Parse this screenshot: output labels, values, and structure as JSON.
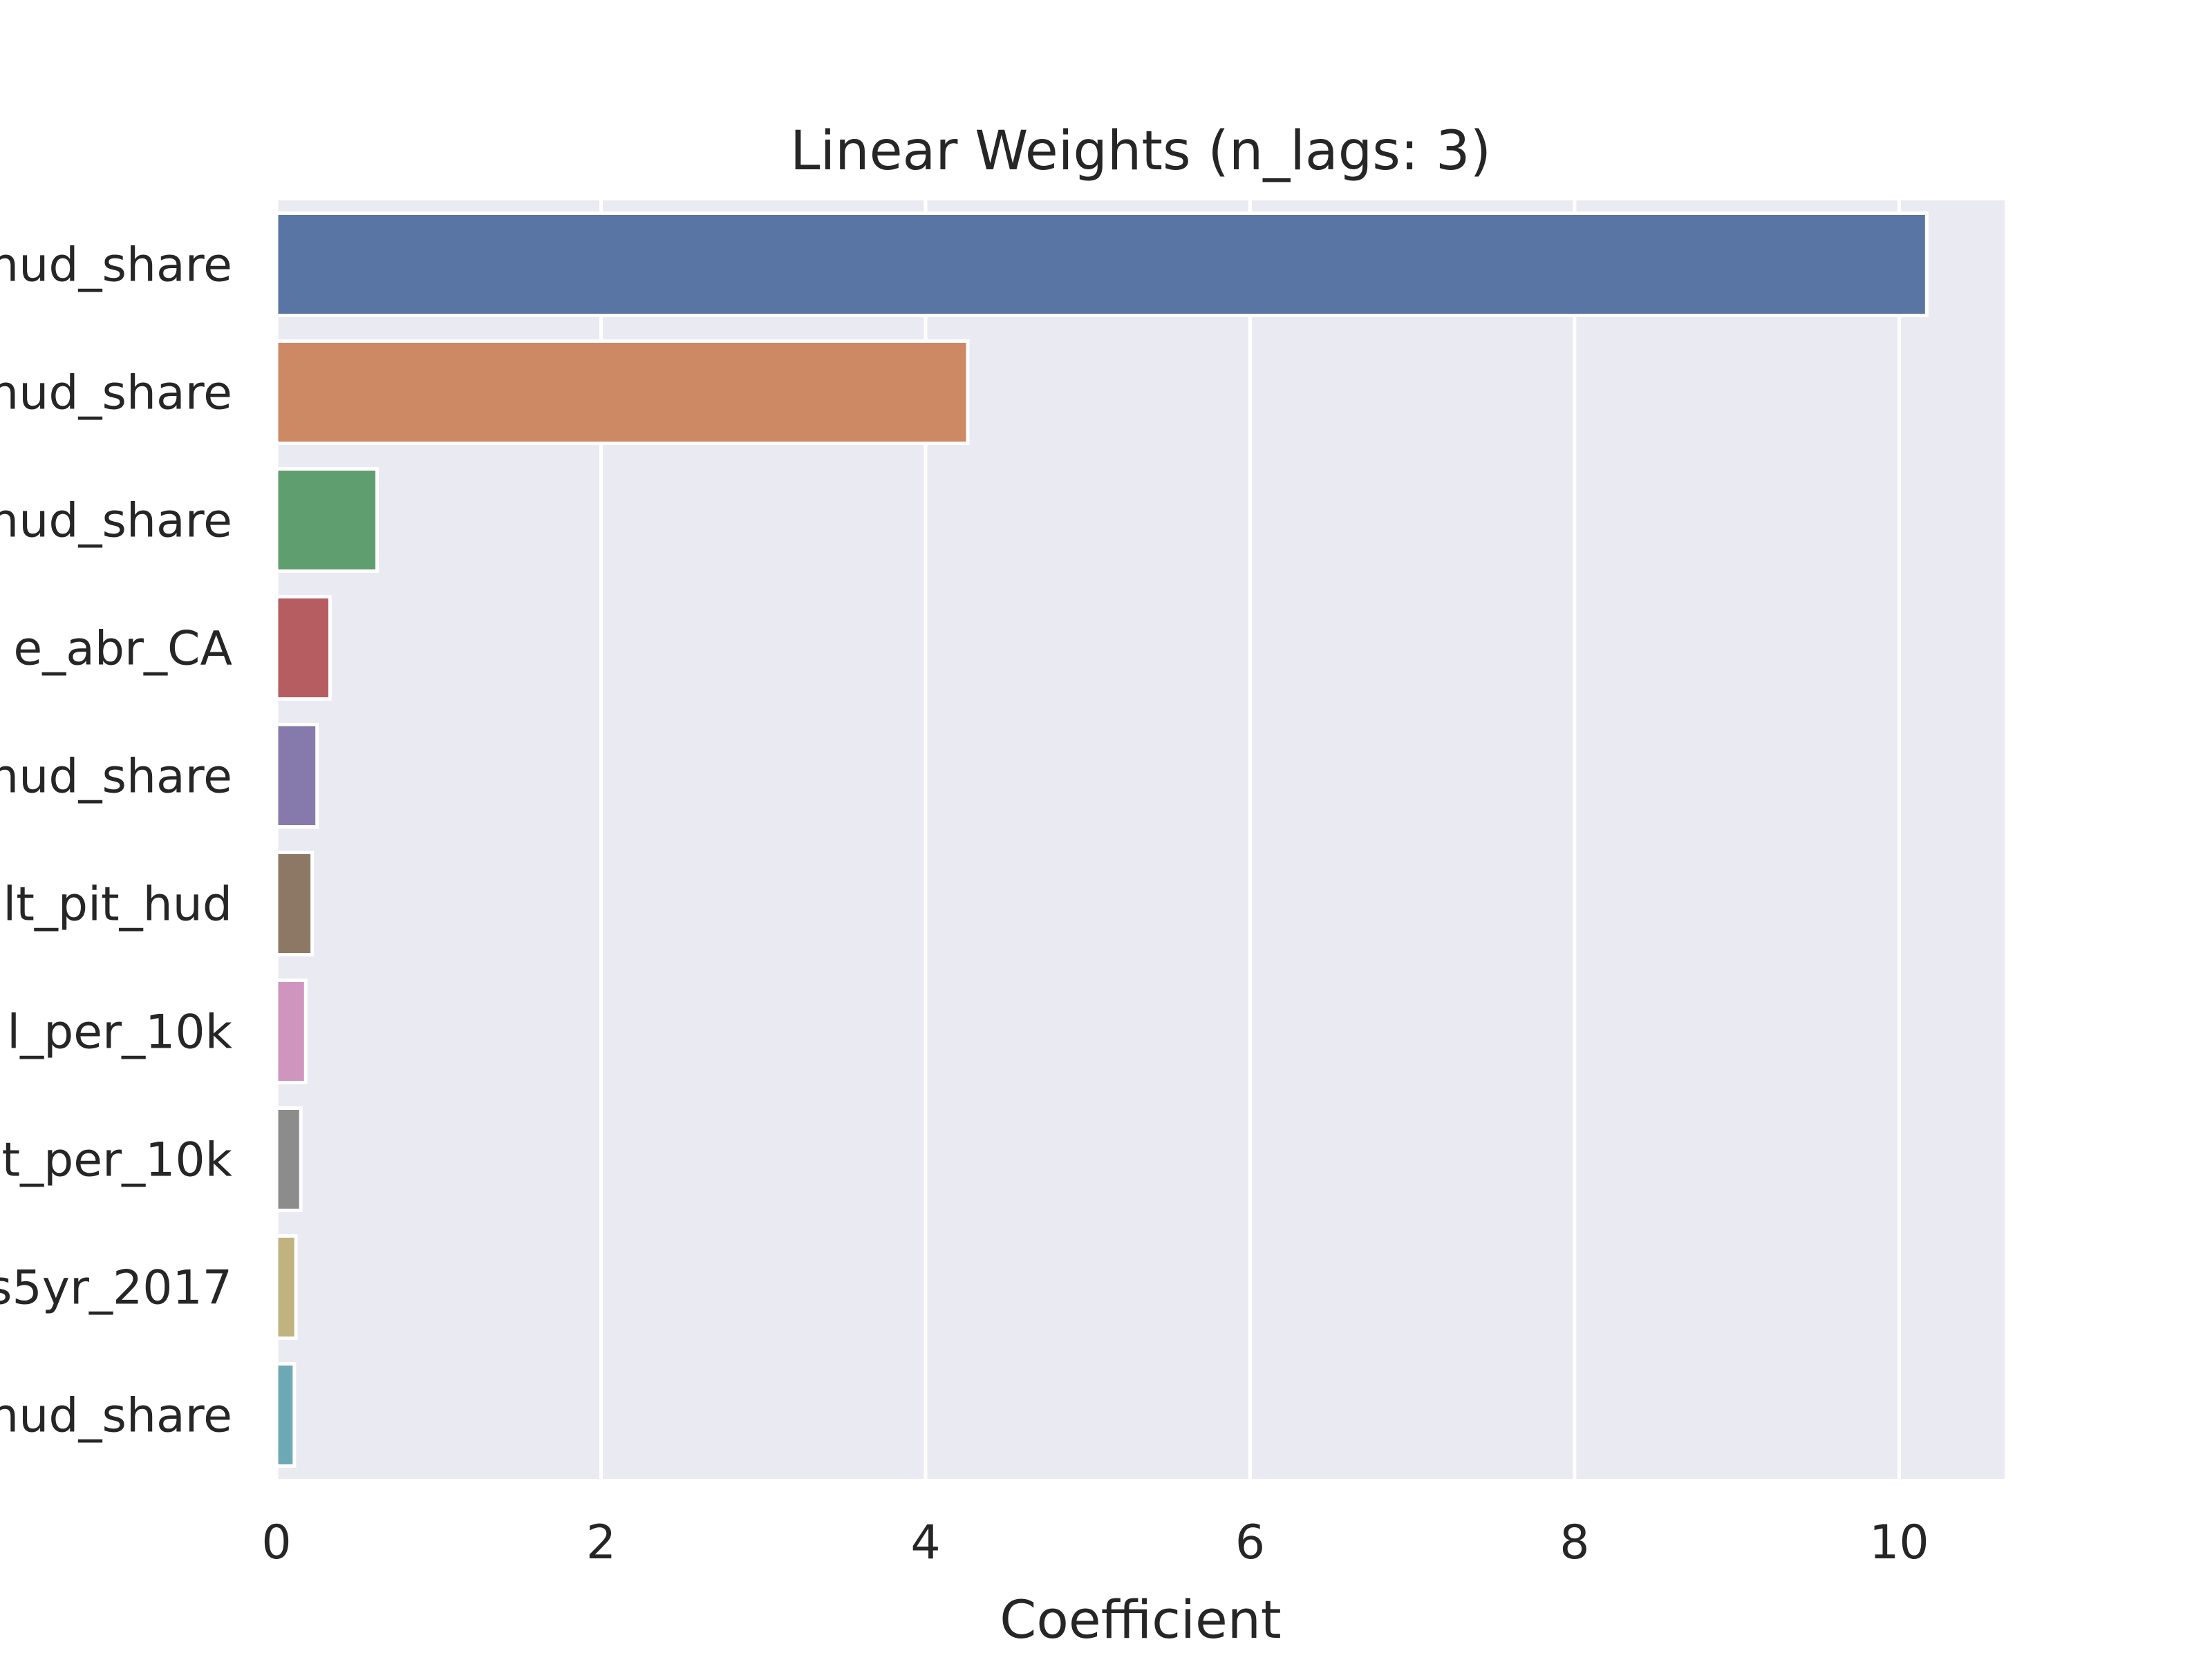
{
  "chart_data": {
    "type": "bar",
    "orientation": "horizontal",
    "title": "Linear Weights (n_lags: 3)",
    "xlabel": "Coefficient",
    "ylabel": "",
    "xlim": [
      0,
      10.65
    ],
    "xticks": [
      0,
      2,
      4,
      6,
      8,
      10
    ],
    "xtick_labels": [
      "0",
      "2",
      "4",
      "6",
      "8",
      "10"
    ],
    "grid": true,
    "categories": [
      "hud_share",
      "hud_share",
      "hud_share",
      "e_abr_CA",
      "hud_share",
      "lt_pit_hud",
      "l_per_10k",
      "t_per_10k",
      "s5yr_2017",
      "hud_share"
    ],
    "values": [
      10.17,
      4.26,
      0.62,
      0.33,
      0.25,
      0.22,
      0.18,
      0.15,
      0.12,
      0.11
    ],
    "colors": [
      "#5975a4",
      "#cc8963",
      "#5f9e6e",
      "#b55d60",
      "#857aab",
      "#8d7866",
      "#d095bf",
      "#8c8c8c",
      "#c1b37f",
      "#6da9b5"
    ]
  }
}
